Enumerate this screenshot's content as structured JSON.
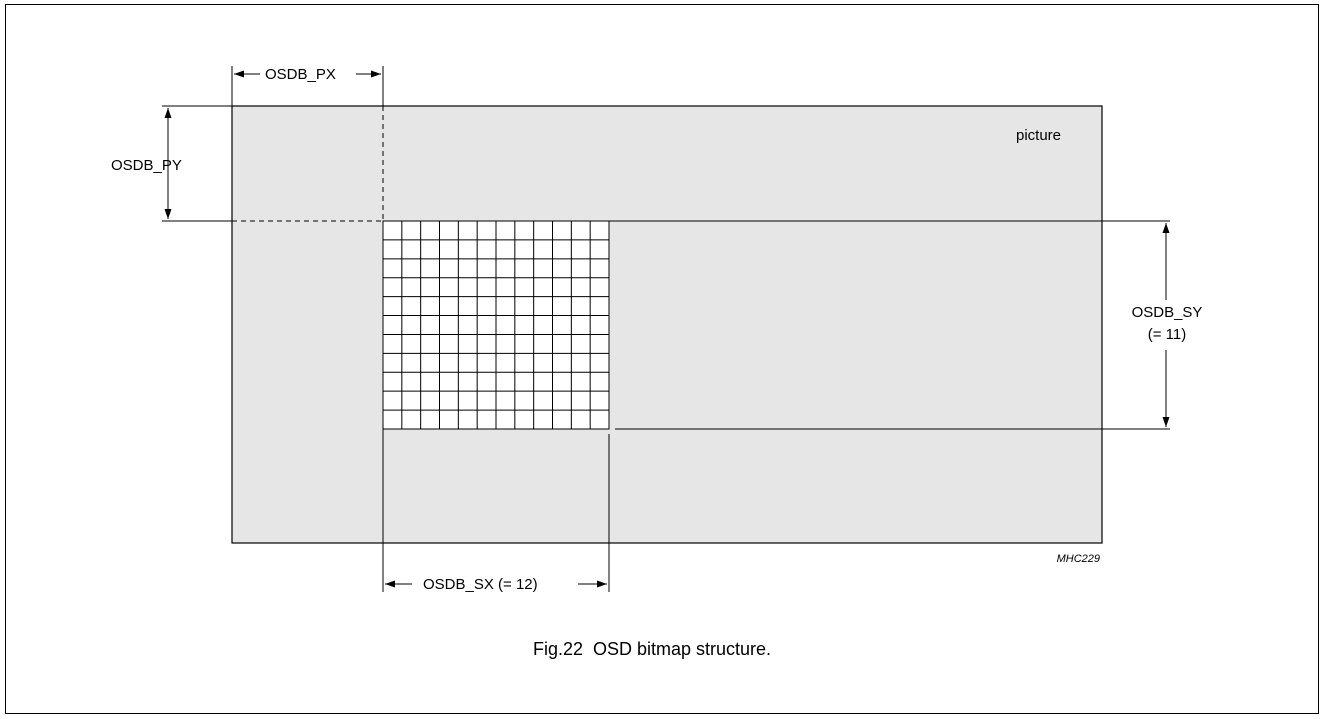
{
  "diagram": {
    "picture_label": "picture",
    "osdb_px_label": "OSDB_PX",
    "osdb_py_label": "OSDB_PY",
    "osdb_sx_label": "OSDB_SX (= 12)",
    "osdb_sy_label": "OSDB_SY",
    "osdb_sy_value": "(= 11)",
    "figure_code": "MHC229",
    "grid_columns": 12,
    "grid_rows": 11,
    "picture_fill": "#e6e6e6"
  },
  "caption": "Fig.22  OSD bitmap structure."
}
